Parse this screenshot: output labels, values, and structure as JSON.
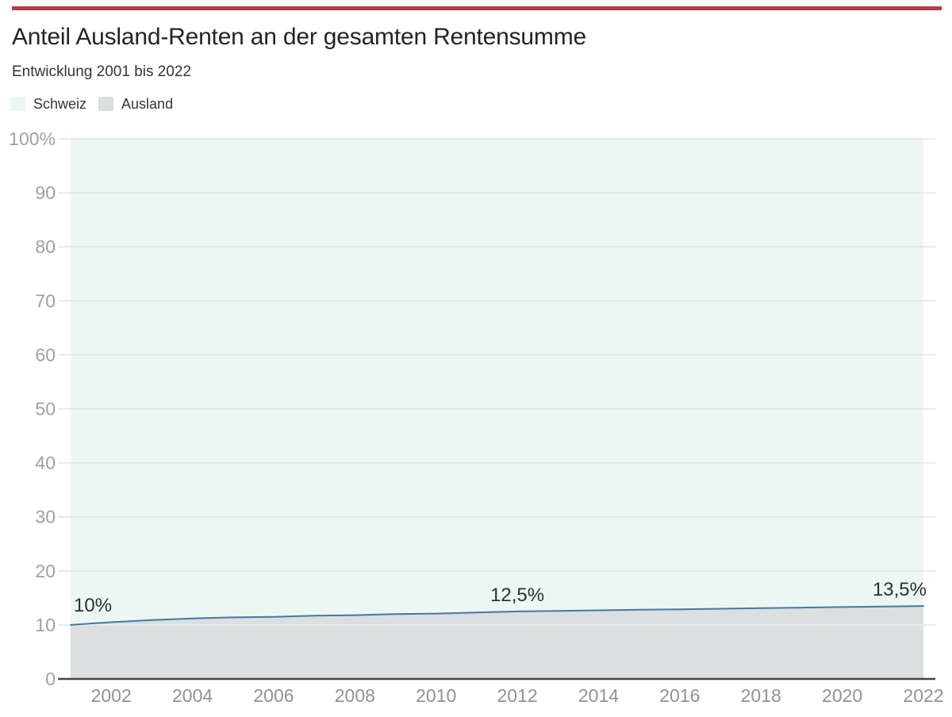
{
  "colors": {
    "accent_rule": "#b53c4a",
    "schweiz_fill": "#ecf7f4",
    "ausland_fill": "#dbdfdf",
    "line": "#4576a7",
    "grid": "#dbe2e0",
    "grid_on_fill": "rgba(255,255,255,0.7)",
    "axis": "#424546",
    "y_tick_label": "#9da1a1",
    "x_tick_label": "#8f9393",
    "data_label": "#2d2f31"
  },
  "legend": [
    {
      "label": "Schweiz",
      "color": "#ecf7f4"
    },
    {
      "label": "Ausland",
      "color": "#dbdfdf"
    }
  ],
  "chart_data": {
    "type": "area",
    "stacked": true,
    "percent_scale": true,
    "title": "Anteil Ausland-Renten an der gesamten Rentensumme",
    "subtitle": "Entwicklung 2001 bis 2022",
    "xlabel": "",
    "ylabel": "",
    "xlim": [
      2001,
      2022
    ],
    "ylim": [
      0,
      100
    ],
    "grid": "horizontal",
    "legend_position": "top-left",
    "x": [
      2001,
      2002,
      2003,
      2004,
      2005,
      2006,
      2007,
      2008,
      2009,
      2010,
      2011,
      2012,
      2013,
      2014,
      2015,
      2016,
      2017,
      2018,
      2019,
      2020,
      2021,
      2022
    ],
    "series": [
      {
        "name": "Ausland",
        "values": [
          10.0,
          10.5,
          10.9,
          11.2,
          11.4,
          11.5,
          11.7,
          11.8,
          12.0,
          12.1,
          12.3,
          12.5,
          12.6,
          12.7,
          12.8,
          12.9,
          13.0,
          13.1,
          13.2,
          13.3,
          13.4,
          13.5
        ]
      },
      {
        "name": "Schweiz",
        "values": [
          90.0,
          89.5,
          89.1,
          88.8,
          88.6,
          88.5,
          88.3,
          88.2,
          88.0,
          87.9,
          87.7,
          87.5,
          87.4,
          87.3,
          87.2,
          87.1,
          87.0,
          86.9,
          86.8,
          86.7,
          86.6,
          86.5
        ]
      }
    ],
    "annotations": [
      {
        "x": 2001,
        "y": 10.0,
        "text": "10%",
        "align": "left"
      },
      {
        "x": 2012,
        "y": 12.5,
        "text": "12,5%",
        "align": "center"
      },
      {
        "x": 2022,
        "y": 13.5,
        "text": "13,5%",
        "align": "right"
      }
    ],
    "y_ticks": {
      "values": [
        0,
        10,
        20,
        30,
        40,
        50,
        60,
        70,
        80,
        90,
        100
      ],
      "labels": [
        "0",
        "10",
        "20",
        "30",
        "40",
        "50",
        "60",
        "70",
        "80",
        "90",
        "100%"
      ]
    },
    "x_ticks": [
      2002,
      2004,
      2006,
      2008,
      2010,
      2012,
      2014,
      2016,
      2018,
      2020,
      2022
    ]
  }
}
